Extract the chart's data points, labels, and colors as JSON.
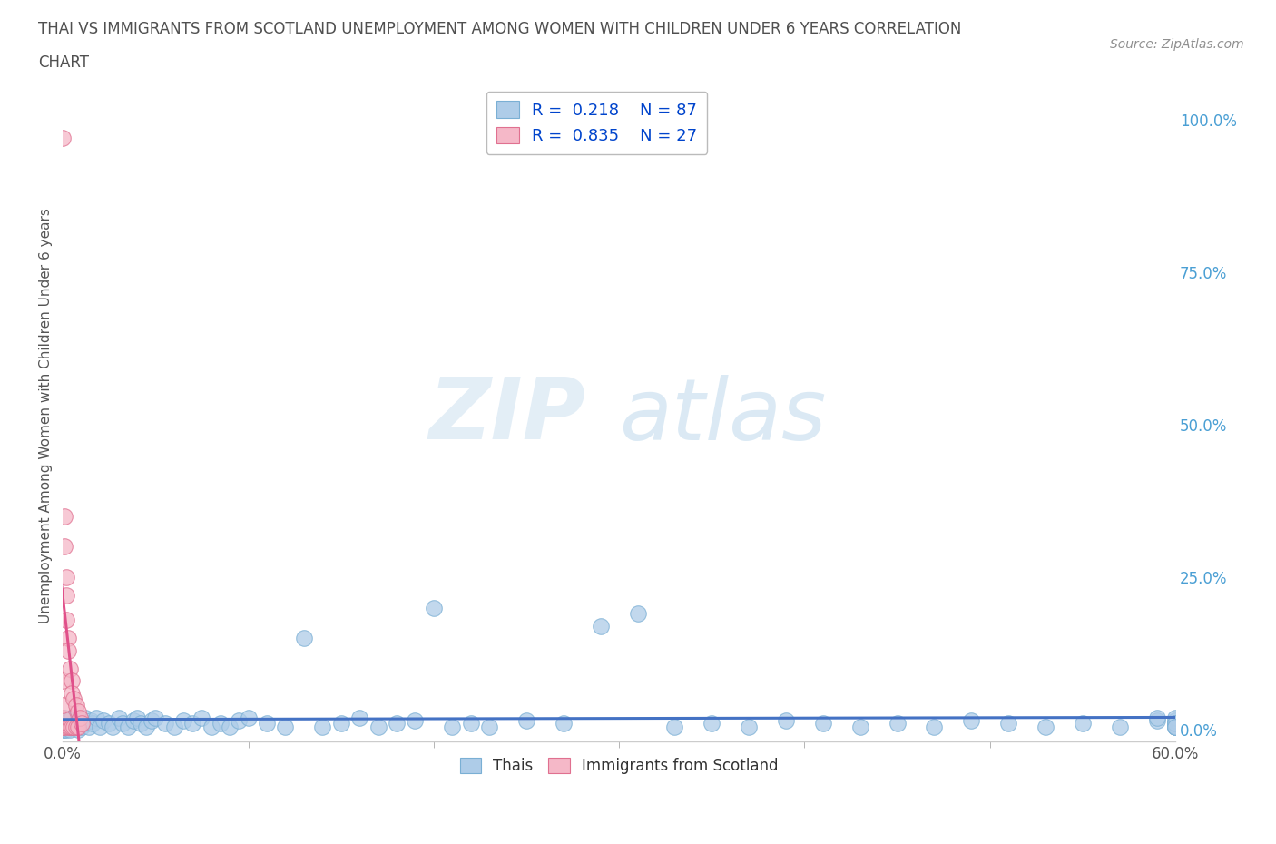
{
  "title_line1": "THAI VS IMMIGRANTS FROM SCOTLAND UNEMPLOYMENT AMONG WOMEN WITH CHILDREN UNDER 6 YEARS CORRELATION",
  "title_line2": "CHART",
  "source_text": "Source: ZipAtlas.com",
  "ylabel": "Unemployment Among Women with Children Under 6 years",
  "ylabel_right_ticks": [
    "100.0%",
    "75.0%",
    "50.0%",
    "25.0%",
    "0.0%"
  ],
  "ylabel_right_values": [
    1.0,
    0.75,
    0.5,
    0.25,
    0.0
  ],
  "watermark_zip": "ZIP",
  "watermark_atlas": "atlas",
  "legend_thai_R": 0.218,
  "legend_thai_N": 87,
  "legend_scotland_R": 0.835,
  "legend_scotland_N": 27,
  "thai_color": "#aecce8",
  "thai_edge_color": "#7aafd4",
  "scotland_color": "#f5b8c8",
  "scotland_edge_color": "#e07090",
  "trend_thai_color": "#4472c4",
  "trend_scotland_color": "#e0508a",
  "background_color": "#ffffff",
  "grid_color": "#b8cfe0",
  "title_color": "#505050",
  "source_color": "#909090",
  "right_tick_color": "#4a9fd4",
  "xmin": 0.0,
  "xmax": 0.6,
  "ymin": -0.02,
  "ymax": 1.05,
  "x_tick_minor": [
    0.1,
    0.2,
    0.3,
    0.4,
    0.5
  ],
  "thai_x": [
    0.0,
    0.0,
    0.001,
    0.001,
    0.002,
    0.002,
    0.003,
    0.003,
    0.004,
    0.005,
    0.005,
    0.006,
    0.007,
    0.008,
    0.009,
    0.01,
    0.01,
    0.012,
    0.013,
    0.014,
    0.015,
    0.016,
    0.018,
    0.02,
    0.022,
    0.025,
    0.027,
    0.03,
    0.032,
    0.035,
    0.038,
    0.04,
    0.042,
    0.045,
    0.048,
    0.05,
    0.055,
    0.06,
    0.065,
    0.07,
    0.075,
    0.08,
    0.085,
    0.09,
    0.095,
    0.1,
    0.11,
    0.12,
    0.13,
    0.14,
    0.15,
    0.16,
    0.17,
    0.18,
    0.19,
    0.2,
    0.21,
    0.22,
    0.23,
    0.25,
    0.27,
    0.29,
    0.31,
    0.33,
    0.35,
    0.37,
    0.39,
    0.41,
    0.43,
    0.45,
    0.47,
    0.49,
    0.51,
    0.53,
    0.55,
    0.57,
    0.59,
    0.59,
    0.6,
    0.6,
    0.6,
    0.6,
    0.6,
    0.6,
    0.6,
    0.6,
    0.6
  ],
  "thai_y": [
    0.0,
    0.01,
    0.0,
    0.02,
    0.01,
    0.0,
    0.005,
    0.015,
    0.0,
    0.01,
    0.02,
    0.005,
    0.01,
    0.0,
    0.015,
    0.01,
    0.005,
    0.02,
    0.01,
    0.005,
    0.015,
    0.01,
    0.02,
    0.005,
    0.015,
    0.01,
    0.005,
    0.02,
    0.01,
    0.005,
    0.015,
    0.02,
    0.01,
    0.005,
    0.015,
    0.02,
    0.01,
    0.005,
    0.015,
    0.01,
    0.02,
    0.005,
    0.01,
    0.005,
    0.015,
    0.02,
    0.01,
    0.005,
    0.15,
    0.005,
    0.01,
    0.02,
    0.005,
    0.01,
    0.015,
    0.2,
    0.005,
    0.01,
    0.005,
    0.015,
    0.01,
    0.17,
    0.19,
    0.005,
    0.01,
    0.005,
    0.015,
    0.01,
    0.005,
    0.01,
    0.005,
    0.015,
    0.01,
    0.005,
    0.01,
    0.005,
    0.015,
    0.02,
    0.005,
    0.01,
    0.015,
    0.005,
    0.01,
    0.02,
    0.005,
    0.01,
    0.005
  ],
  "scot_x": [
    0.0,
    0.0,
    0.0,
    0.0,
    0.0,
    0.001,
    0.001,
    0.001,
    0.002,
    0.002,
    0.002,
    0.003,
    0.003,
    0.003,
    0.004,
    0.004,
    0.005,
    0.005,
    0.005,
    0.006,
    0.006,
    0.007,
    0.007,
    0.008,
    0.008,
    0.009,
    0.01
  ],
  "scot_y": [
    0.97,
    0.005,
    0.02,
    0.04,
    0.08,
    0.35,
    0.3,
    0.005,
    0.25,
    0.22,
    0.18,
    0.15,
    0.13,
    0.005,
    0.1,
    0.005,
    0.08,
    0.06,
    0.005,
    0.05,
    0.005,
    0.04,
    0.005,
    0.03,
    0.005,
    0.02,
    0.01
  ]
}
